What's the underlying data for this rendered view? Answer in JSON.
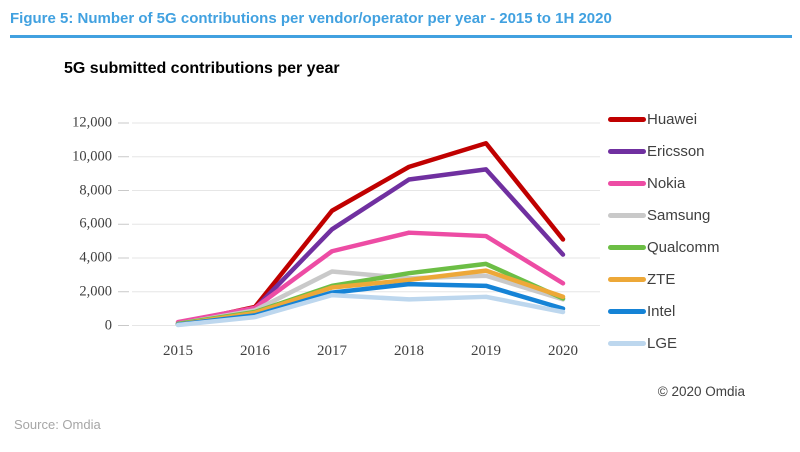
{
  "figure": {
    "title": "Figure 5: Number of 5G contributions per vendor/operator per year - 2015 to 1H 2020",
    "accent_color": "#41A1E0"
  },
  "chart": {
    "title": "5G submitted contributions per year"
  },
  "chart_data": {
    "type": "line",
    "title": "5G submitted contributions per year",
    "categories": [
      "2015",
      "2016",
      "2017",
      "2018",
      "2019",
      "2020"
    ],
    "series": [
      {
        "name": "Huawei",
        "color": "#C00000",
        "values": [
          100,
          1100,
          6800,
          9400,
          10800,
          5100
        ]
      },
      {
        "name": "Ericsson",
        "color": "#7030A0",
        "values": [
          100,
          1000,
          5700,
          8650,
          9250,
          4200
        ]
      },
      {
        "name": "Nokia",
        "color": "#ED4CA4",
        "values": [
          200,
          1050,
          4400,
          5500,
          5300,
          2500
        ]
      },
      {
        "name": "Samsung",
        "color": "#C9C9C9",
        "values": [
          100,
          900,
          3200,
          2800,
          2950,
          1550
        ]
      },
      {
        "name": "Qualcomm",
        "color": "#6CBE45",
        "values": [
          100,
          800,
          2350,
          3100,
          3650,
          1600
        ]
      },
      {
        "name": "ZTE",
        "color": "#EDA838",
        "values": [
          50,
          750,
          2250,
          2700,
          3250,
          1700
        ]
      },
      {
        "name": "Intel",
        "color": "#1583D6",
        "values": [
          50,
          600,
          1950,
          2450,
          2350,
          1000
        ]
      },
      {
        "name": "LGE",
        "color": "#BDD7EE",
        "values": [
          30,
          500,
          1800,
          1550,
          1700,
          800
        ]
      }
    ],
    "ylim": [
      0,
      12000
    ],
    "ytick_interval": 2000,
    "yticks": [
      {
        "value": 0,
        "label": "0"
      },
      {
        "value": 2000,
        "label": "2,000"
      },
      {
        "value": 4000,
        "label": "4,000"
      },
      {
        "value": 6000,
        "label": "6,000"
      },
      {
        "value": 8000,
        "label": "8,000"
      },
      {
        "value": 10000,
        "label": "10,000"
      },
      {
        "value": 12000,
        "label": "12,000"
      }
    ],
    "grid": "horizontal",
    "gridline_color": "#E6E6E6",
    "tick_color": "#C9C9C9",
    "legend_position": "right"
  },
  "footer": {
    "source": "Source: Omdia",
    "copyright": "© 2020 Omdia"
  }
}
